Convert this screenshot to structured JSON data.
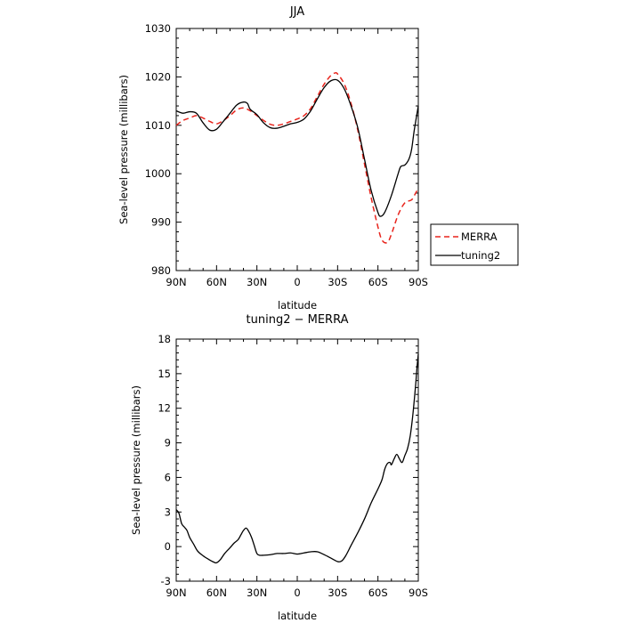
{
  "chart_data": [
    {
      "type": "line",
      "title": "JJA",
      "xlabel": "latitude",
      "ylabel": "Sea-level pressure (millibars)",
      "x_ticks": [
        {
          "lat": 90,
          "label": "90N"
        },
        {
          "lat": 60,
          "label": "60N"
        },
        {
          "lat": 30,
          "label": "30N"
        },
        {
          "lat": 0,
          "label": "0"
        },
        {
          "lat": -30,
          "label": "30S"
        },
        {
          "lat": -60,
          "label": "60S"
        },
        {
          "lat": -90,
          "label": "90S"
        }
      ],
      "y_ticks": [
        980,
        990,
        1000,
        1010,
        1020,
        1030
      ],
      "ylim": [
        980,
        1030
      ],
      "xlim": [
        90,
        -90
      ],
      "grid": false,
      "legend": "outside-right",
      "series": [
        {
          "name": "MERRA",
          "color": "#e8241c",
          "dash": "dashed",
          "points": [
            [
              90,
              1010
            ],
            [
              85,
              1011
            ],
            [
              80,
              1011.5
            ],
            [
              75,
              1012
            ],
            [
              70,
              1011.5
            ],
            [
              65,
              1010.8
            ],
            [
              60,
              1010.3
            ],
            [
              55,
              1011
            ],
            [
              50,
              1012
            ],
            [
              45,
              1013.2
            ],
            [
              40,
              1013.6
            ],
            [
              35,
              1013
            ],
            [
              30,
              1012
            ],
            [
              25,
              1011
            ],
            [
              20,
              1010.2
            ],
            [
              15,
              1010
            ],
            [
              10,
              1010.3
            ],
            [
              5,
              1010.8
            ],
            [
              0,
              1011.3
            ],
            [
              -5,
              1012
            ],
            [
              -10,
              1013.5
            ],
            [
              -15,
              1016
            ],
            [
              -20,
              1018.5
            ],
            [
              -25,
              1020.3
            ],
            [
              -28,
              1020.8
            ],
            [
              -30,
              1020.6
            ],
            [
              -35,
              1018.5
            ],
            [
              -40,
              1014.5
            ],
            [
              -45,
              1009
            ],
            [
              -50,
              1002
            ],
            [
              -55,
              995
            ],
            [
              -60,
              989
            ],
            [
              -63,
              986.3
            ],
            [
              -67,
              985.8
            ],
            [
              -70,
              987.5
            ],
            [
              -75,
              991.5
            ],
            [
              -80,
              994
            ],
            [
              -85,
              994.6
            ],
            [
              -88,
              996
            ],
            [
              -90,
              997
            ]
          ]
        },
        {
          "name": "tuning2",
          "color": "#000000",
          "dash": "solid",
          "points": [
            [
              90,
              1013
            ],
            [
              85,
              1012.5
            ],
            [
              80,
              1012.8
            ],
            [
              75,
              1012.5
            ],
            [
              70,
              1010.5
            ],
            [
              65,
              1009
            ],
            [
              60,
              1009.2
            ],
            [
              55,
              1010.8
            ],
            [
              50,
              1012.5
            ],
            [
              45,
              1014.2
            ],
            [
              40,
              1014.8
            ],
            [
              37,
              1014.5
            ],
            [
              35,
              1013.3
            ],
            [
              30,
              1012.2
            ],
            [
              25,
              1010.5
            ],
            [
              20,
              1009.5
            ],
            [
              15,
              1009.4
            ],
            [
              10,
              1009.8
            ],
            [
              5,
              1010.3
            ],
            [
              0,
              1010.6
            ],
            [
              -5,
              1011.3
            ],
            [
              -10,
              1013
            ],
            [
              -15,
              1015.5
            ],
            [
              -20,
              1017.8
            ],
            [
              -25,
              1019.2
            ],
            [
              -30,
              1019.3
            ],
            [
              -35,
              1017.5
            ],
            [
              -40,
              1014
            ],
            [
              -45,
              1009.5
            ],
            [
              -50,
              1003
            ],
            [
              -55,
              996.5
            ],
            [
              -60,
              992
            ],
            [
              -62,
              991.2
            ],
            [
              -65,
              992
            ],
            [
              -70,
              995.5
            ],
            [
              -75,
              1000
            ],
            [
              -77,
              1001.5
            ],
            [
              -80,
              1001.8
            ],
            [
              -83,
              1003
            ],
            [
              -85,
              1005
            ],
            [
              -87,
              1009
            ],
            [
              -90,
              1014
            ]
          ]
        }
      ]
    },
    {
      "type": "line",
      "title": "tuning2 − MERRA",
      "xlabel": "latitude",
      "ylabel": "Sea-level pressure (millibars)",
      "x_ticks": [
        {
          "lat": 90,
          "label": "90N"
        },
        {
          "lat": 60,
          "label": "60N"
        },
        {
          "lat": 30,
          "label": "30N"
        },
        {
          "lat": 0,
          "label": "0"
        },
        {
          "lat": -30,
          "label": "30S"
        },
        {
          "lat": -60,
          "label": "60S"
        },
        {
          "lat": -90,
          "label": "90S"
        }
      ],
      "y_ticks": [
        -3,
        0,
        3,
        6,
        9,
        12,
        15,
        18
      ],
      "ylim": [
        -3,
        18
      ],
      "xlim": [
        90,
        -90
      ],
      "grid": false,
      "series": [
        {
          "name": "",
          "color": "#000000",
          "dash": "solid",
          "points": [
            [
              90,
              3.2
            ],
            [
              88,
              2.9
            ],
            [
              86,
              2
            ],
            [
              84,
              1.7
            ],
            [
              82,
              1.4
            ],
            [
              80,
              0.8
            ],
            [
              77,
              0.2
            ],
            [
              74,
              -0.4
            ],
            [
              70,
              -0.8
            ],
            [
              66,
              -1.1
            ],
            [
              62,
              -1.35
            ],
            [
              60,
              -1.4
            ],
            [
              57,
              -1.1
            ],
            [
              54,
              -0.6
            ],
            [
              50,
              -0.1
            ],
            [
              47,
              0.3
            ],
            [
              44,
              0.6
            ],
            [
              42,
              1
            ],
            [
              40,
              1.4
            ],
            [
              38,
              1.6
            ],
            [
              36,
              1.3
            ],
            [
              34,
              0.8
            ],
            [
              32,
              0.1
            ],
            [
              30,
              -0.6
            ],
            [
              28,
              -0.75
            ],
            [
              25,
              -0.75
            ],
            [
              20,
              -0.7
            ],
            [
              15,
              -0.6
            ],
            [
              10,
              -0.6
            ],
            [
              5,
              -0.55
            ],
            [
              0,
              -0.65
            ],
            [
              -5,
              -0.55
            ],
            [
              -10,
              -0.45
            ],
            [
              -15,
              -0.45
            ],
            [
              -20,
              -0.7
            ],
            [
              -25,
              -1.0
            ],
            [
              -30,
              -1.3
            ],
            [
              -33,
              -1.25
            ],
            [
              -36,
              -0.8
            ],
            [
              -40,
              0.1
            ],
            [
              -45,
              1.2
            ],
            [
              -50,
              2.4
            ],
            [
              -55,
              3.8
            ],
            [
              -60,
              5
            ],
            [
              -63,
              5.8
            ],
            [
              -65,
              6.7
            ],
            [
              -67,
              7.2
            ],
            [
              -69,
              7.3
            ],
            [
              -70,
              7.1
            ],
            [
              -72,
              7.6
            ],
            [
              -74,
              8.0
            ],
            [
              -76,
              7.6
            ],
            [
              -78,
              7.3
            ],
            [
              -80,
              7.9
            ],
            [
              -82,
              8.5
            ],
            [
              -84,
              9.6
            ],
            [
              -86,
              11.5
            ],
            [
              -88,
              14
            ],
            [
              -89,
              15.5
            ],
            [
              -90,
              16.7
            ]
          ]
        }
      ]
    }
  ]
}
